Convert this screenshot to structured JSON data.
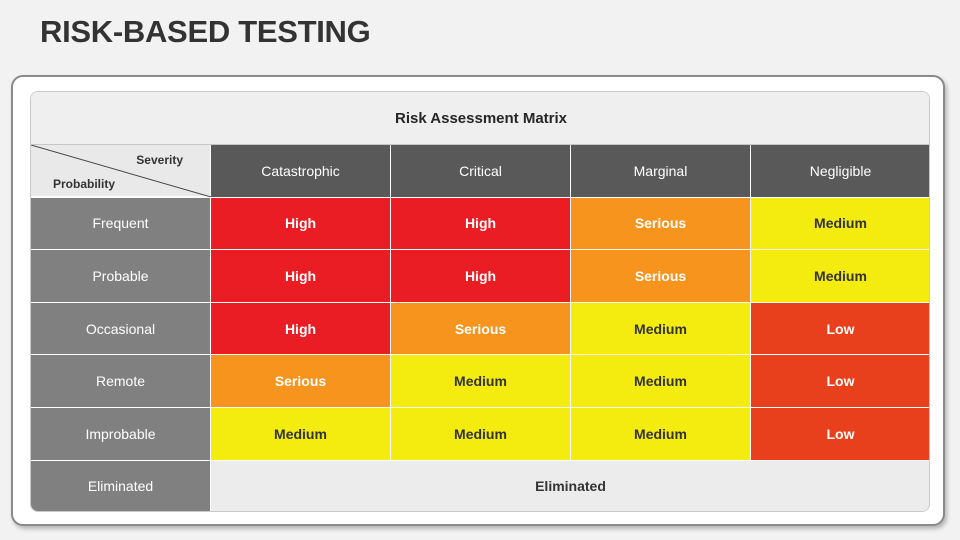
{
  "title": "RISK-BASED TESTING",
  "matrix": {
    "title": "Risk Assessment Matrix",
    "corner": {
      "severity_label": "Severity",
      "probability_label": "Probability"
    },
    "columns": [
      "Catastrophic",
      "Critical",
      "Marginal",
      "Negligible"
    ],
    "rows": [
      {
        "label": "Frequent",
        "cells": [
          "High",
          "High",
          "Serious",
          "Medium"
        ]
      },
      {
        "label": "Probable",
        "cells": [
          "High",
          "High",
          "Serious",
          "Medium"
        ]
      },
      {
        "label": "Occasional",
        "cells": [
          "High",
          "Serious",
          "Medium",
          "Low"
        ]
      },
      {
        "label": "Remote",
        "cells": [
          "Serious",
          "Medium",
          "Medium",
          "Low"
        ]
      },
      {
        "label": "Improbable",
        "cells": [
          "Medium",
          "Medium",
          "Medium",
          "Low"
        ]
      }
    ],
    "eliminated_row": {
      "label": "Eliminated",
      "value": "Eliminated"
    },
    "level_colors": {
      "High": "#ea1c24",
      "Serious": "#f7941d",
      "Medium": "#f5ec0f",
      "Low": "#e8401c"
    }
  }
}
